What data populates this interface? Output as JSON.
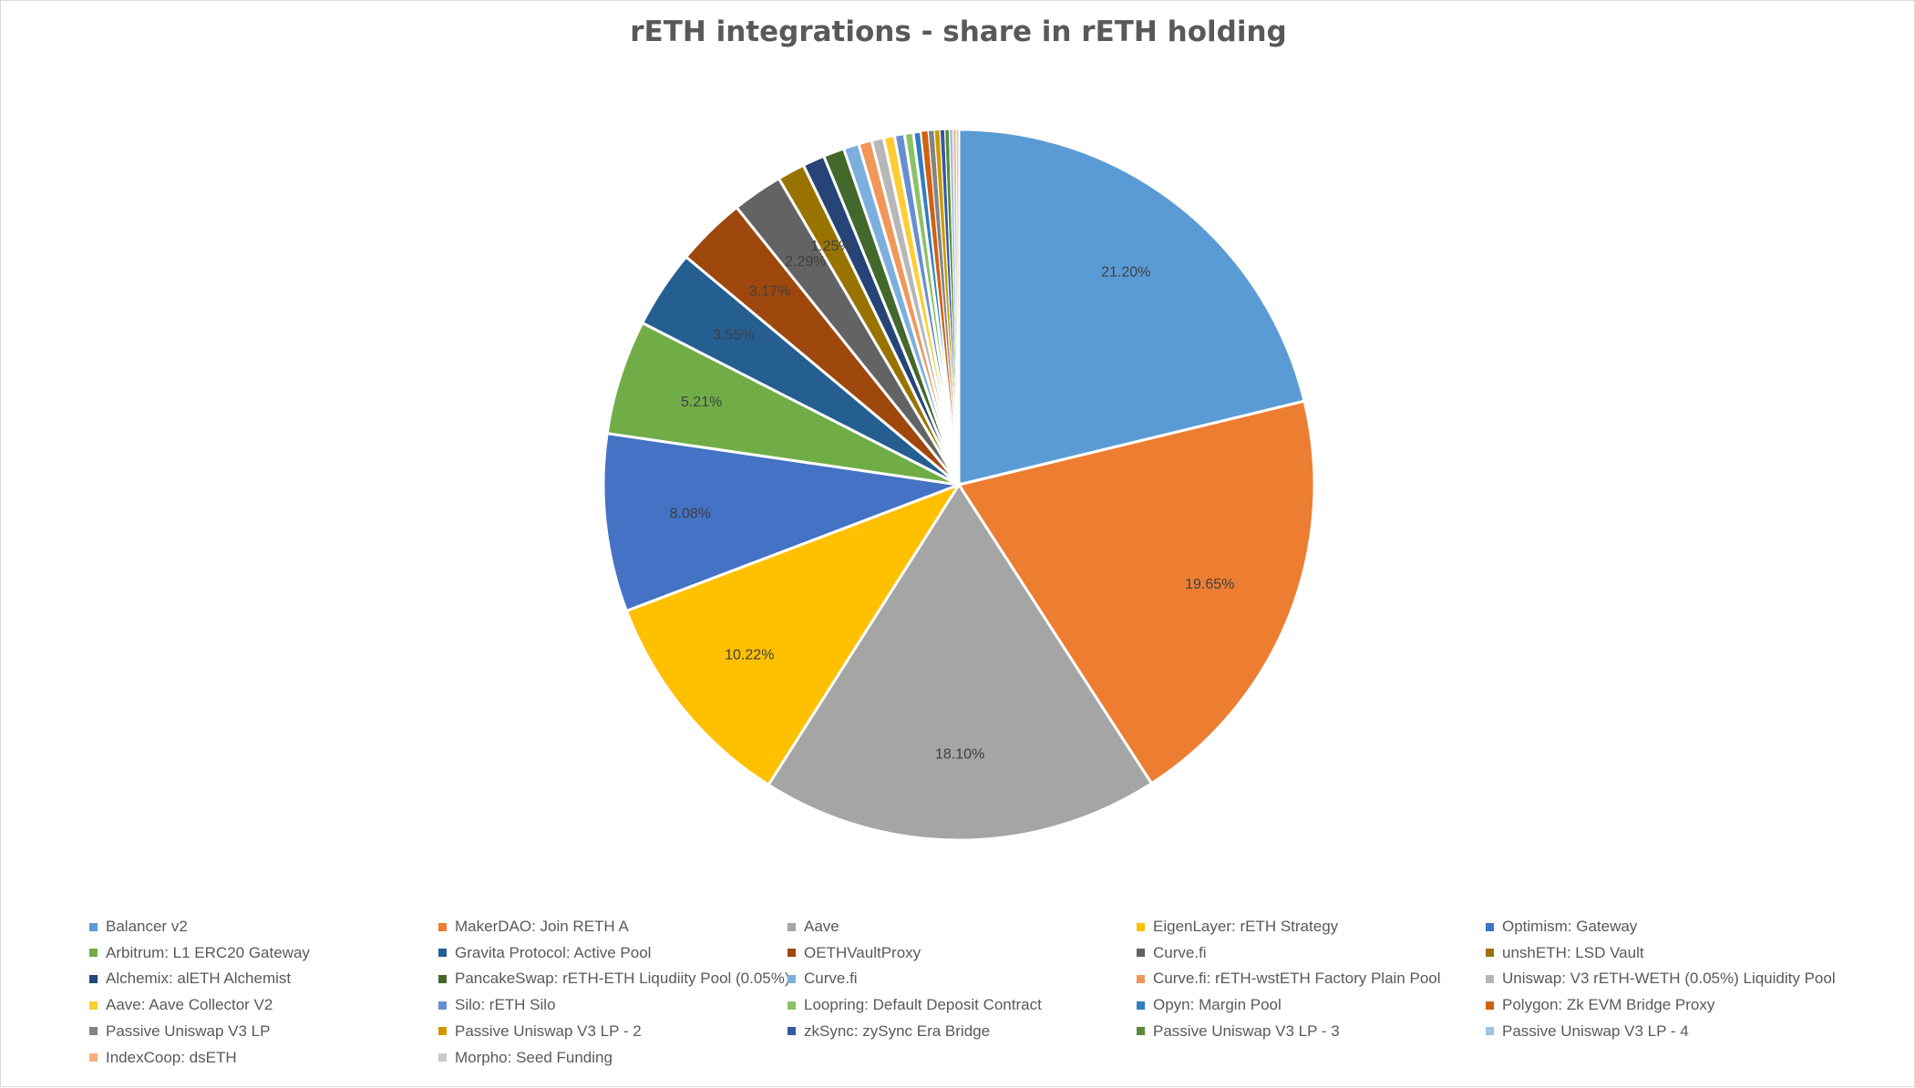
{
  "chart_data": {
    "type": "pie",
    "title": "rETH integrations - share in rETH holding",
    "legend_position": "bottom",
    "slices": [
      {
        "name": "Balancer v2",
        "value": 21.2,
        "label": "21.20%",
        "color": "#5B9BD5"
      },
      {
        "name": "MakerDAO: Join RETH A",
        "value": 19.65,
        "label": "19.65%",
        "color": "#ED7D31"
      },
      {
        "name": "Aave",
        "value": 18.1,
        "label": "18.10%",
        "color": "#A5A5A5"
      },
      {
        "name": "EigenLayer: rETH Strategy",
        "value": 10.22,
        "label": "10.22%",
        "color": "#FFC000"
      },
      {
        "name": "Optimism: Gateway",
        "value": 8.08,
        "label": "8.08%",
        "color": "#4472C4"
      },
      {
        "name": "Arbitrum: L1 ERC20 Gateway",
        "value": 5.21,
        "label": "5.21%",
        "color": "#70AD47"
      },
      {
        "name": "Gravita Protocol: Active Pool",
        "value": 3.55,
        "label": "3.55%",
        "color": "#255E91"
      },
      {
        "name": "OETHVaultProxy",
        "value": 3.17,
        "label": "3.17%",
        "color": "#9E480E"
      },
      {
        "name": "Curve.fi",
        "value": 2.29,
        "label": "2.29%",
        "color": "#636363"
      },
      {
        "name": "unshETH: LSD Vault",
        "value": 1.25,
        "label": "1.25%",
        "color": "#997300"
      },
      {
        "name": "Alchemix: alETH Alchemist",
        "value": 1.0,
        "label": "",
        "color": "#264478"
      },
      {
        "name": "PancakeSwap: rETH-ETH Liqudiity Pool (0.05%)",
        "value": 0.95,
        "label": "",
        "color": "#43682B"
      },
      {
        "name": "Curve.fi",
        "value": 0.7,
        "label": "",
        "color": "#7CAFDD"
      },
      {
        "name": "Curve.fi: rETH-wstETH Factory Plain Pool",
        "value": 0.6,
        "label": "",
        "color": "#F1975A"
      },
      {
        "name": "Uniswap: V3 rETH-WETH (0.05%) Liquidity Pool",
        "value": 0.55,
        "label": "",
        "color": "#B7B7B7"
      },
      {
        "name": "Aave: Aave Collector V2",
        "value": 0.5,
        "label": "",
        "color": "#FFCD33"
      },
      {
        "name": "Silo: rETH Silo",
        "value": 0.45,
        "label": "",
        "color": "#698ED0"
      },
      {
        "name": "Loopring: Default Deposit Contract",
        "value": 0.4,
        "label": "",
        "color": "#8CC168"
      },
      {
        "name": "Opyn: Margin Pool",
        "value": 0.35,
        "label": "",
        "color": "#327DC2"
      },
      {
        "name": "Polygon: Zk EVM Bridge Proxy",
        "value": 0.32,
        "label": "",
        "color": "#D26012"
      },
      {
        "name": "Passive Uniswap V3 LP",
        "value": 0.28,
        "label": "",
        "color": "#848484"
      },
      {
        "name": "Passive Uniswap V3 LP - 2",
        "value": 0.25,
        "label": "",
        "color": "#CC9A00"
      },
      {
        "name": "zkSync: zySync Era Bridge",
        "value": 0.22,
        "label": "",
        "color": "#335AA1"
      },
      {
        "name": "Passive Uniswap V3 LP - 3",
        "value": 0.2,
        "label": "",
        "color": "#5A8A39"
      },
      {
        "name": "Passive Uniswap V3 LP - 4",
        "value": 0.17,
        "label": "",
        "color": "#9DC3E6"
      },
      {
        "name": "IndexCoop: dsETH",
        "value": 0.14,
        "label": "",
        "color": "#F4B183"
      },
      {
        "name": "Morpho: Seed Funding",
        "value": 0.12,
        "label": "",
        "color": "#C9C9C9"
      }
    ]
  }
}
